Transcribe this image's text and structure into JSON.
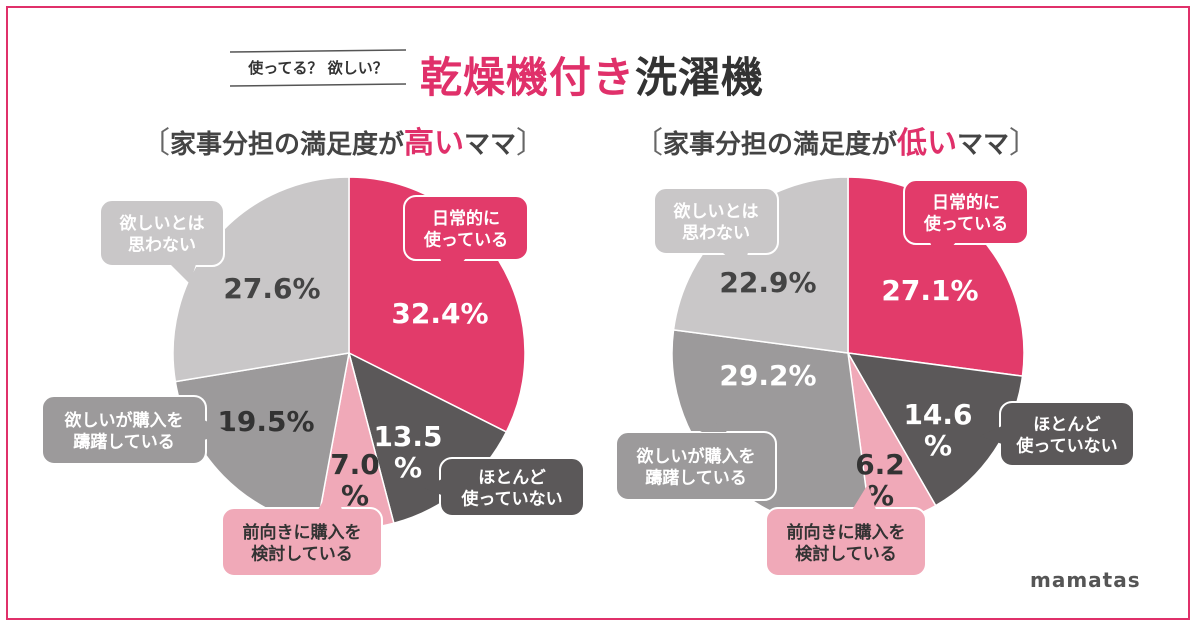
{
  "header": {
    "sub": "使ってる？ 欲しい？",
    "title_pink": "乾燥機付き",
    "title_dark": "洗濯機"
  },
  "left_panel": {
    "bracket_open": "〔",
    "pre": "家事分担の満足度が",
    "accent": "高い",
    "post": "ママ",
    "bracket_close": "〕"
  },
  "right_panel": {
    "bracket_open": "〔",
    "pre": "家事分担の満足度が",
    "accent": "低い",
    "post": "ママ",
    "bracket_close": "〕"
  },
  "colors": {
    "daily": "#e23b6a",
    "rarely": "#5b5859",
    "considering": "#f0a9b8",
    "hesitating": "#9c9a9b",
    "no_want": "#c9c7c8",
    "frame": "#e0306a"
  },
  "chart_data": [
    {
      "type": "pie",
      "title": "〔家事分担の満足度が高いママ〕",
      "start": "12 o'clock, clockwise",
      "slices": [
        {
          "label": "日常的に使っている",
          "value": 32.4,
          "value_text": "32.4%"
        },
        {
          "label": "ほとんど使っていない",
          "value": 13.5,
          "value_text": "13.5 %"
        },
        {
          "label": "前向きに購入を検討している",
          "value": 7.0,
          "value_text": "7.0 %"
        },
        {
          "label": "欲しいが購入を躊躇している",
          "value": 19.5,
          "value_text": "19.5%"
        },
        {
          "label": "欲しいとは思わない",
          "value": 27.6,
          "value_text": "27.6%"
        }
      ]
    },
    {
      "type": "pie",
      "title": "〔家事分担の満足度が低いママ〕",
      "start": "12 o'clock, clockwise",
      "slices": [
        {
          "label": "日常的に使っている",
          "value": 27.1,
          "value_text": "27.1%"
        },
        {
          "label": "ほとんど使っていない",
          "value": 14.6,
          "value_text": "14.6 %"
        },
        {
          "label": "前向きに購入を検討している",
          "value": 6.2,
          "value_text": "6.2 %"
        },
        {
          "label": "欲しいが購入を躊躇している",
          "value": 29.2,
          "value_text": "29.2%"
        },
        {
          "label": "欲しいとは思わない",
          "value": 22.9,
          "value_text": "22.9%"
        }
      ]
    }
  ],
  "brand": "mamatas"
}
